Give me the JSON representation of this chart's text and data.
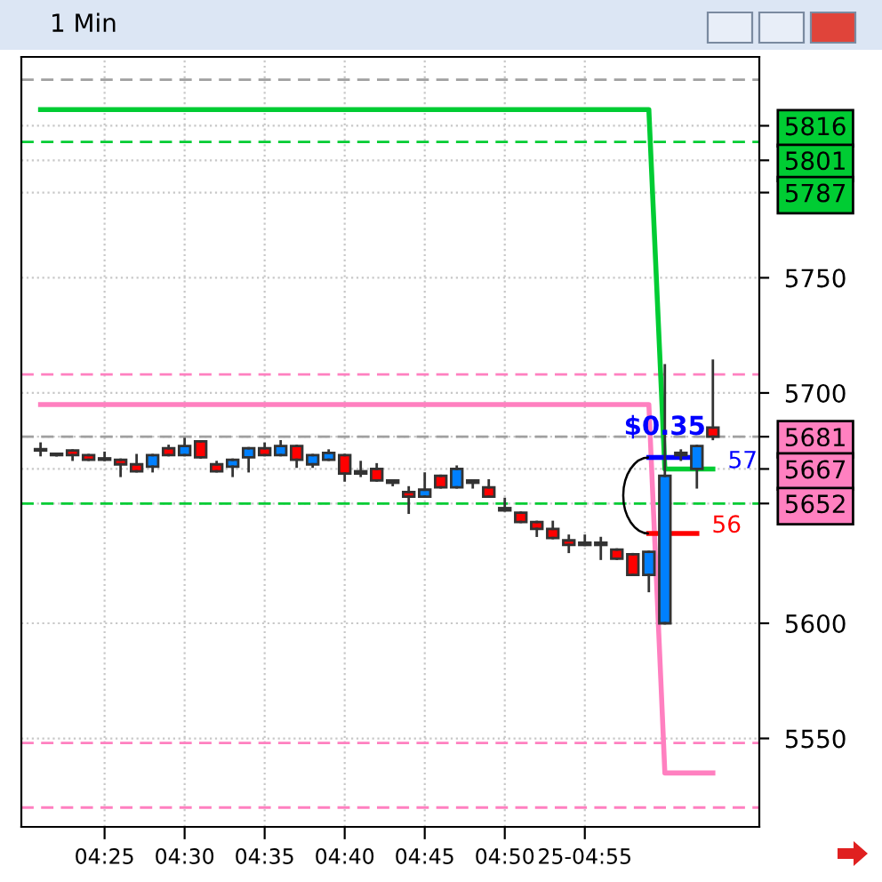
{
  "chart_data": {
    "type": "candlestick",
    "title": "1 Min",
    "categories": [
      null,
      null,
      null,
      null,
      "04:25",
      null,
      null,
      null,
      null,
      "04:30",
      null,
      null,
      null,
      null,
      "04:35",
      null,
      null,
      null,
      null,
      "04:40",
      null,
      null,
      null,
      null,
      "04:45",
      null,
      null,
      null,
      null,
      "04:50",
      null,
      null,
      null,
      null,
      "25-04:55",
      null,
      null,
      null,
      null,
      null,
      null,
      null,
      null
    ],
    "ohlc": [
      [
        5675,
        5678,
        5673,
        5675
      ],
      [
        5673,
        5673,
        5673,
        5673
      ],
      [
        5675,
        5675,
        5671,
        5673
      ],
      [
        5673,
        5673,
        5671,
        5671
      ],
      [
        5671,
        5674,
        5671,
        5671
      ],
      [
        5671,
        5671,
        5664,
        5669
      ],
      [
        5669,
        5673,
        5666,
        5666
      ],
      [
        5668,
        5673,
        5666,
        5673
      ],
      [
        5676,
        5677,
        5673,
        5673
      ],
      [
        5673,
        5680,
        5673,
        5677
      ],
      [
        5679,
        5679,
        5672,
        5672
      ],
      [
        5669,
        5670,
        5666,
        5666
      ],
      [
        5668,
        5671,
        5664,
        5671
      ],
      [
        5672,
        5676,
        5666,
        5676
      ],
      [
        5676,
        5678,
        5673,
        5673
      ],
      [
        5673,
        5679,
        5673,
        5677
      ],
      [
        5677,
        5677,
        5668,
        5671
      ],
      [
        5669,
        5673,
        5668,
        5673
      ],
      [
        5671,
        5675,
        5671,
        5674
      ],
      [
        5673,
        5673,
        5662,
        5665
      ],
      [
        5665,
        5670,
        5664,
        5666
      ],
      [
        5667,
        5669,
        5662,
        5662
      ],
      [
        5662,
        5662,
        5660,
        5661
      ],
      [
        5657,
        5659,
        5648,
        5655
      ],
      [
        5655,
        5665,
        5655,
        5658
      ],
      [
        5664,
        5664,
        5659,
        5659
      ],
      [
        5659,
        5668,
        5659,
        5667
      ],
      [
        5662,
        5662,
        5659,
        5661
      ],
      [
        5659,
        5662,
        5655,
        5655
      ],
      [
        5649,
        5654,
        5649,
        5650
      ],
      [
        5648,
        5648,
        5644,
        5644
      ],
      [
        5644,
        5644,
        5638,
        5641
      ],
      [
        5641,
        5644,
        5637,
        5637
      ],
      [
        5636,
        5638,
        5631,
        5634
      ],
      [
        5634,
        5638,
        5634,
        5635
      ],
      [
        5635,
        5637,
        5628,
        5634
      ],
      [
        5632,
        5632,
        5628,
        5628
      ],
      [
        5630,
        5630,
        5621,
        5621
      ],
      [
        5621,
        5631,
        5614,
        5631
      ],
      [
        5600,
        5712,
        5600,
        5664
      ],
      [
        5674,
        5675,
        5671,
        5673
      ],
      [
        5667,
        5677,
        5659,
        5677
      ],
      [
        5685,
        5714,
        5680,
        5681
      ]
    ],
    "colors": [
      "#333333",
      "#333333",
      "#ff0000",
      "#ff0000",
      "#333333",
      "#ff0000",
      "#ff0000",
      "#0080ff",
      "#ff0000",
      "#0080ff",
      "#ff0000",
      "#ff0000",
      "#0080ff",
      "#0080ff",
      "#ff0000",
      "#0080ff",
      "#ff0000",
      "#0080ff",
      "#0080ff",
      "#ff0000",
      "#0080ff",
      "#ff0000",
      "#ff0000",
      "#ff0000",
      "#0080ff",
      "#ff0000",
      "#0080ff",
      "#ff0000",
      "#ff0000",
      "#0080ff",
      "#ff0000",
      "#ff0000",
      "#ff0000",
      "#ff0000",
      "#0080ff",
      "#ff0000",
      "#ff0000",
      "#ff0000",
      "#0080ff",
      "#0080ff",
      "#ff0000",
      "#0080ff",
      "#ff0000"
    ],
    "series": [
      {
        "type": "line",
        "color": "#00cc33",
        "values": [
          5823,
          5823,
          5823,
          5823,
          5823,
          5823,
          5823,
          5823,
          5823,
          5823,
          5823,
          5823,
          5823,
          5823,
          5823,
          5823,
          5823,
          5823,
          5823,
          5823,
          5823,
          5823,
          5823,
          5823,
          5823,
          5823,
          5823,
          5823,
          5823,
          5823,
          5823,
          5823,
          5823,
          5823,
          5823,
          5823,
          5823,
          5823,
          5823,
          5667,
          5667,
          5667,
          5667
        ]
      },
      {
        "type": "line",
        "color": "#ff80c0",
        "values": [
          5695,
          5695,
          5695,
          5695,
          5695,
          5695,
          5695,
          5695,
          5695,
          5695,
          5695,
          5695,
          5695,
          5695,
          5695,
          5695,
          5695,
          5695,
          5695,
          5695,
          5695,
          5695,
          5695,
          5695,
          5695,
          5695,
          5695,
          5695,
          5695,
          5695,
          5695,
          5695,
          5695,
          5695,
          5695,
          5695,
          5695,
          5695,
          5695,
          5535,
          5535,
          5535,
          5535
        ]
      },
      {
        "type": "line",
        "color": "#0000ff",
        "values": [
          null,
          null,
          null,
          null,
          null,
          null,
          null,
          null,
          null,
          null,
          null,
          null,
          null,
          null,
          null,
          null,
          null,
          null,
          null,
          null,
          null,
          null,
          null,
          null,
          null,
          null,
          null,
          null,
          null,
          null,
          null,
          null,
          null,
          null,
          null,
          null,
          null,
          null,
          5672,
          5672,
          5672,
          5672,
          null
        ]
      },
      {
        "type": "line",
        "color": "#ff0000",
        "values": [
          null,
          null,
          null,
          null,
          null,
          null,
          null,
          null,
          null,
          null,
          null,
          null,
          null,
          null,
          null,
          null,
          null,
          null,
          null,
          null,
          null,
          null,
          null,
          null,
          null,
          null,
          null,
          null,
          null,
          null,
          null,
          null,
          null,
          null,
          null,
          null,
          null,
          null,
          5639,
          5639,
          5639,
          5639,
          null
        ]
      }
    ],
    "ylim": [
      5511.6,
      5845.9
    ],
    "yticks": [
      5550,
      5600,
      5700,
      5750,
      {
        "value": 5816,
        "label": "5816"
      },
      {
        "value": 5801,
        "label": "5801"
      },
      {
        "value": 5787,
        "label": "5787"
      },
      {
        "value": 5681,
        "label": "5681"
      },
      {
        "value": 5667,
        "label": "5667"
      },
      {
        "value": 5652,
        "label": "5652"
      }
    ],
    "grid": true,
    "ref_lines": [
      {
        "axis": "y",
        "value": 5836,
        "color": "#a0a0a0",
        "line_style": "dashed"
      },
      {
        "axis": "y",
        "value": 5809,
        "color": "#00cc33",
        "line_style": "dashed"
      },
      {
        "axis": "y",
        "value": 5708,
        "color": "#ff80c0",
        "line_style": "dashed"
      },
      {
        "axis": "y",
        "value": 5681,
        "color": "#a0a0a0",
        "line_style": "dashed"
      },
      {
        "axis": "y",
        "value": 5652,
        "color": "#00cc33",
        "line_style": "dashed"
      },
      {
        "axis": "y",
        "value": 5548,
        "color": "#ff80c0",
        "line_style": "dashed"
      },
      {
        "axis": "y",
        "value": 5520,
        "color": "#ff80c0",
        "line_style": "dashed"
      }
    ],
    "annotations": [
      {
        "text": "$0.35",
        "y": 5672
      },
      "57",
      "56"
    ]
  }
}
